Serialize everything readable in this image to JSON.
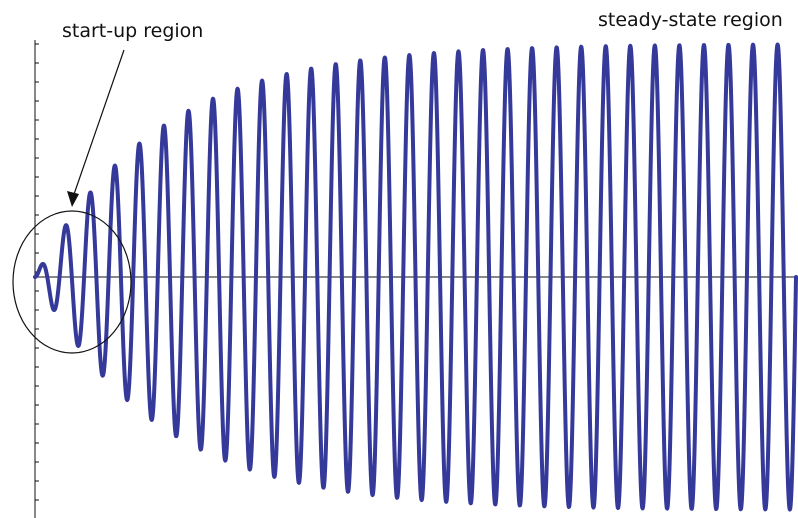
{
  "annotations": {
    "startup_label": "start-up region",
    "steady_label": "steady-state region"
  },
  "colors": {
    "wave": "#34399a",
    "axes": "#111111",
    "annotation": "#111111"
  },
  "chart_data": {
    "type": "line",
    "title": "",
    "xlabel": "",
    "ylabel": "",
    "grid": false,
    "legend": "none",
    "signal": {
      "description_units": "normalized",
      "cycles": 31,
      "envelope_time_constant_cycles": 5.0,
      "steady_amplitude": 1.0
    }
  }
}
